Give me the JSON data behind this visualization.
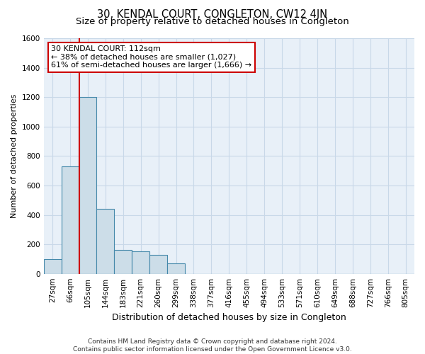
{
  "title": "30, KENDAL COURT, CONGLETON, CW12 4JN",
  "subtitle": "Size of property relative to detached houses in Congleton",
  "xlabel": "Distribution of detached houses by size in Congleton",
  "ylabel": "Number of detached properties",
  "bar_labels": [
    "27sqm",
    "66sqm",
    "105sqm",
    "144sqm",
    "183sqm",
    "221sqm",
    "260sqm",
    "299sqm",
    "338sqm",
    "377sqm",
    "416sqm",
    "455sqm",
    "494sqm",
    "533sqm",
    "571sqm",
    "610sqm",
    "649sqm",
    "688sqm",
    "727sqm",
    "766sqm",
    "805sqm"
  ],
  "bar_values": [
    100,
    730,
    1200,
    440,
    160,
    150,
    130,
    70,
    0,
    0,
    0,
    0,
    0,
    0,
    0,
    0,
    0,
    0,
    0,
    0,
    0
  ],
  "bar_color": "#ccdde8",
  "bar_edge_color": "#4488aa",
  "red_line_x": 2.0,
  "annotation_line1": "30 KENDAL COURT: 112sqm",
  "annotation_line2": "← 38% of detached houses are smaller (1,027)",
  "annotation_line3": "61% of semi-detached houses are larger (1,666) →",
  "annotation_box_color": "#ffffff",
  "annotation_edge_color": "#cc0000",
  "red_line_color": "#cc0000",
  "grid_color": "#c8d8e8",
  "background_color": "#e8f0f8",
  "ylim": [
    0,
    1600
  ],
  "yticks": [
    0,
    200,
    400,
    600,
    800,
    1000,
    1200,
    1400,
    1600
  ],
  "footer_line1": "Contains HM Land Registry data © Crown copyright and database right 2024.",
  "footer_line2": "Contains public sector information licensed under the Open Government Licence v3.0.",
  "title_fontsize": 10.5,
  "subtitle_fontsize": 9.5,
  "xlabel_fontsize": 9,
  "ylabel_fontsize": 8,
  "tick_fontsize": 7.5,
  "annotation_fontsize": 8,
  "footer_fontsize": 6.5
}
